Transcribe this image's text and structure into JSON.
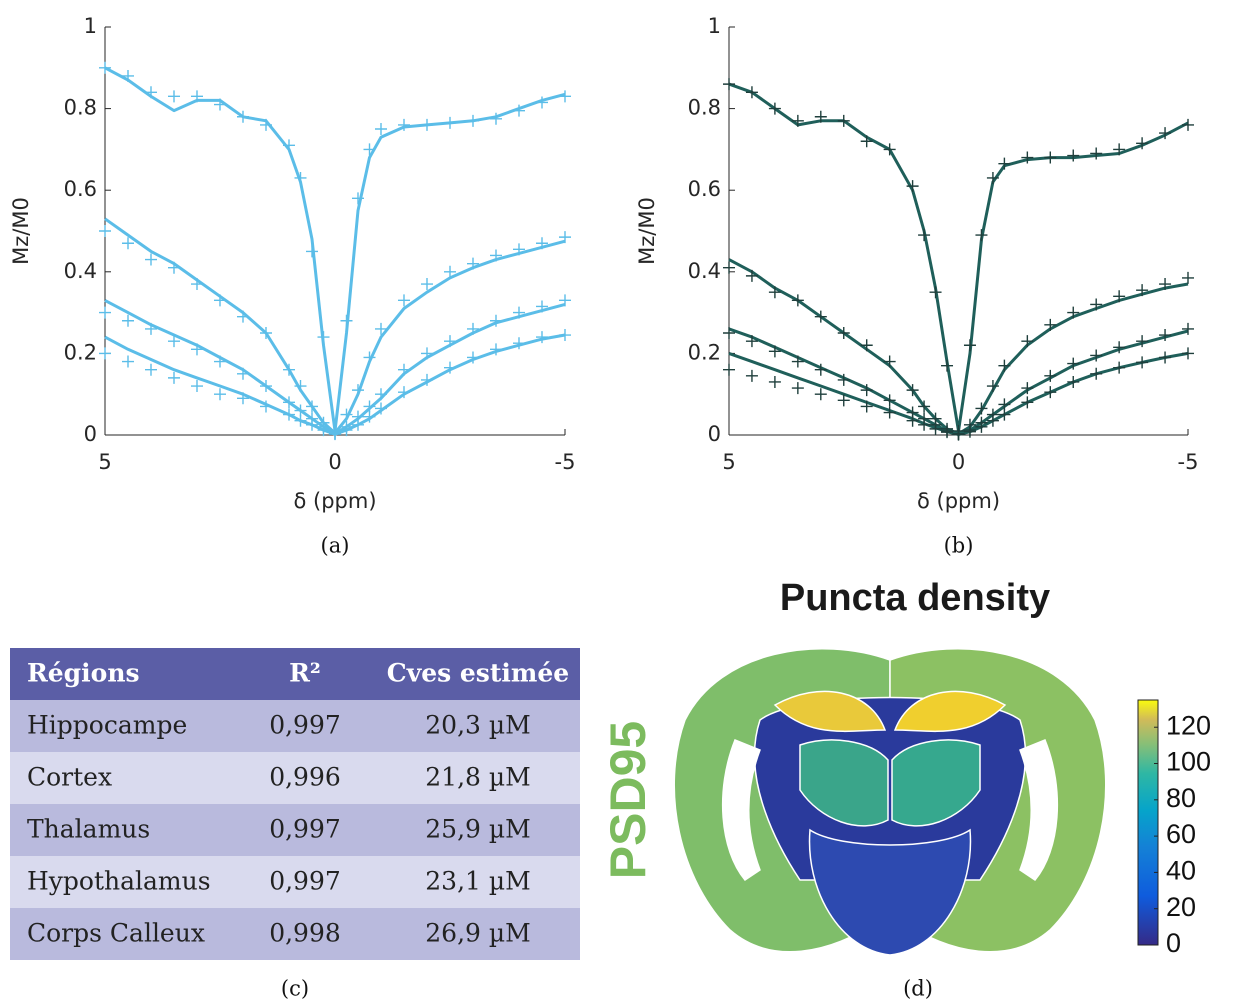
{
  "chart_data": [
    {
      "type": "line",
      "label": "(a)",
      "xlabel": "δ (ppm)",
      "ylabel": "Mz/M0",
      "x": [
        5,
        4.5,
        4,
        3.5,
        3,
        2.5,
        2,
        1.5,
        1,
        0.75,
        0.5,
        0.25,
        0,
        -0.25,
        -0.5,
        -0.75,
        -1,
        -1.5,
        -2,
        -2.5,
        -3,
        -3.5,
        -4,
        -4.5,
        -5
      ],
      "xlim": [
        5,
        -5
      ],
      "xticks": [
        5,
        0,
        -5
      ],
      "ylim": [
        0,
        1
      ],
      "yticks": [
        0,
        0.2,
        0.4,
        0.6,
        0.8,
        1
      ],
      "series": [
        {
          "style": "line",
          "color": "#5bbde8",
          "values": [
            0.9,
            0.87,
            0.83,
            0.795,
            0.82,
            0.82,
            0.78,
            0.77,
            0.7,
            0.62,
            0.48,
            0.22,
            0.01,
            0.25,
            0.55,
            0.68,
            0.73,
            0.755,
            0.76,
            0.765,
            0.77,
            0.78,
            0.8,
            0.82,
            0.835
          ]
        },
        {
          "style": "line",
          "color": "#5bbde8",
          "values": [
            0.53,
            0.49,
            0.45,
            0.42,
            0.38,
            0.34,
            0.3,
            0.25,
            0.16,
            0.11,
            0.07,
            0.03,
            0.005,
            0.04,
            0.1,
            0.18,
            0.24,
            0.31,
            0.35,
            0.385,
            0.41,
            0.43,
            0.445,
            0.46,
            0.475
          ]
        },
        {
          "style": "line",
          "color": "#5bbde8",
          "values": [
            0.33,
            0.3,
            0.27,
            0.245,
            0.22,
            0.19,
            0.16,
            0.12,
            0.08,
            0.06,
            0.04,
            0.02,
            0.003,
            0.02,
            0.04,
            0.065,
            0.09,
            0.15,
            0.19,
            0.22,
            0.25,
            0.275,
            0.29,
            0.305,
            0.32
          ]
        },
        {
          "style": "line",
          "color": "#5bbde8",
          "values": [
            0.24,
            0.21,
            0.185,
            0.16,
            0.14,
            0.12,
            0.1,
            0.075,
            0.05,
            0.035,
            0.025,
            0.012,
            0.002,
            0.012,
            0.025,
            0.04,
            0.06,
            0.1,
            0.13,
            0.16,
            0.185,
            0.205,
            0.22,
            0.235,
            0.245
          ]
        },
        {
          "style": "marker",
          "color": "#5bbde8",
          "values": [
            0.9,
            0.88,
            0.84,
            0.83,
            0.83,
            0.81,
            0.78,
            0.76,
            0.71,
            0.63,
            0.45,
            0.24,
            0.01,
            0.28,
            0.58,
            0.7,
            0.75,
            0.76,
            0.76,
            0.765,
            0.77,
            0.775,
            0.795,
            0.815,
            0.83
          ]
        },
        {
          "style": "marker",
          "color": "#5bbde8",
          "values": [
            0.5,
            0.47,
            0.43,
            0.41,
            0.37,
            0.33,
            0.29,
            0.25,
            0.16,
            0.12,
            0.07,
            0.03,
            0.005,
            0.05,
            0.11,
            0.19,
            0.26,
            0.33,
            0.37,
            0.4,
            0.42,
            0.44,
            0.455,
            0.47,
            0.485
          ]
        },
        {
          "style": "marker",
          "color": "#5bbde8",
          "values": [
            0.3,
            0.28,
            0.26,
            0.23,
            0.21,
            0.18,
            0.15,
            0.12,
            0.08,
            0.06,
            0.04,
            0.02,
            0.003,
            0.02,
            0.045,
            0.07,
            0.1,
            0.16,
            0.2,
            0.23,
            0.26,
            0.28,
            0.3,
            0.315,
            0.33
          ]
        },
        {
          "style": "marker",
          "color": "#5bbde8",
          "values": [
            0.2,
            0.18,
            0.16,
            0.14,
            0.12,
            0.1,
            0.09,
            0.07,
            0.05,
            0.035,
            0.025,
            0.012,
            0.002,
            0.012,
            0.025,
            0.045,
            0.065,
            0.105,
            0.135,
            0.165,
            0.19,
            0.21,
            0.225,
            0.24,
            0.245
          ]
        }
      ]
    },
    {
      "type": "line",
      "label": "(b)",
      "xlabel": "δ (ppm)",
      "ylabel": "Mz/M0",
      "x": [
        5,
        4.5,
        4,
        3.5,
        3,
        2.5,
        2,
        1.5,
        1,
        0.75,
        0.5,
        0.25,
        0,
        -0.25,
        -0.5,
        -0.75,
        -1,
        -1.5,
        -2,
        -2.5,
        -3,
        -3.5,
        -4,
        -4.5,
        -5
      ],
      "xlim": [
        5,
        -5
      ],
      "xticks": [
        5,
        0,
        -5
      ],
      "ylim": [
        0,
        1
      ],
      "yticks": [
        0,
        0.2,
        0.4,
        0.6,
        0.8,
        1
      ],
      "series": [
        {
          "style": "line",
          "color": "#1f5f5a",
          "values": [
            0.86,
            0.84,
            0.8,
            0.76,
            0.77,
            0.77,
            0.73,
            0.7,
            0.6,
            0.5,
            0.36,
            0.18,
            0.01,
            0.2,
            0.48,
            0.62,
            0.66,
            0.675,
            0.68,
            0.68,
            0.685,
            0.69,
            0.71,
            0.735,
            0.765
          ]
        },
        {
          "style": "line",
          "color": "#1f5f5a",
          "values": [
            0.43,
            0.4,
            0.36,
            0.33,
            0.29,
            0.25,
            0.21,
            0.17,
            0.11,
            0.07,
            0.04,
            0.015,
            0.003,
            0.02,
            0.06,
            0.11,
            0.16,
            0.22,
            0.26,
            0.29,
            0.31,
            0.33,
            0.345,
            0.36,
            0.37
          ]
        },
        {
          "style": "line",
          "color": "#1f5f5a",
          "values": [
            0.26,
            0.24,
            0.215,
            0.19,
            0.165,
            0.14,
            0.115,
            0.085,
            0.055,
            0.04,
            0.025,
            0.01,
            0.002,
            0.012,
            0.03,
            0.05,
            0.07,
            0.11,
            0.14,
            0.17,
            0.19,
            0.21,
            0.225,
            0.24,
            0.255
          ]
        },
        {
          "style": "line",
          "color": "#1f5f5a",
          "values": [
            0.2,
            0.18,
            0.16,
            0.14,
            0.12,
            0.1,
            0.08,
            0.06,
            0.04,
            0.028,
            0.018,
            0.008,
            0.001,
            0.008,
            0.02,
            0.035,
            0.05,
            0.08,
            0.105,
            0.13,
            0.15,
            0.165,
            0.178,
            0.19,
            0.2
          ]
        },
        {
          "style": "marker",
          "color": "#1f3f3c",
          "values": [
            0.86,
            0.84,
            0.8,
            0.77,
            0.78,
            0.77,
            0.72,
            0.7,
            0.61,
            0.49,
            0.35,
            0.17,
            0.01,
            0.22,
            0.49,
            0.63,
            0.665,
            0.68,
            0.68,
            0.685,
            0.69,
            0.7,
            0.715,
            0.74,
            0.76
          ]
        },
        {
          "style": "marker",
          "color": "#1f3f3c",
          "values": [
            0.41,
            0.39,
            0.35,
            0.33,
            0.29,
            0.25,
            0.22,
            0.18,
            0.11,
            0.07,
            0.04,
            0.015,
            0.003,
            0.025,
            0.065,
            0.12,
            0.17,
            0.23,
            0.27,
            0.3,
            0.32,
            0.34,
            0.355,
            0.37,
            0.385
          ]
        },
        {
          "style": "marker",
          "color": "#1f3f3c",
          "values": [
            0.25,
            0.23,
            0.205,
            0.18,
            0.16,
            0.135,
            0.11,
            0.085,
            0.055,
            0.04,
            0.025,
            0.01,
            0.002,
            0.012,
            0.03,
            0.05,
            0.075,
            0.115,
            0.145,
            0.175,
            0.195,
            0.215,
            0.23,
            0.245,
            0.26
          ]
        },
        {
          "style": "marker",
          "color": "#1f3f3c",
          "values": [
            0.16,
            0.145,
            0.13,
            0.115,
            0.1,
            0.085,
            0.07,
            0.055,
            0.035,
            0.025,
            0.015,
            0.007,
            0.001,
            0.008,
            0.02,
            0.035,
            0.05,
            0.08,
            0.105,
            0.13,
            0.15,
            0.165,
            0.178,
            0.19,
            0.2
          ]
        }
      ]
    }
  ],
  "table": {
    "header": [
      "Régions",
      "R²",
      "Cves estimée"
    ],
    "rows": [
      [
        "Hippocampe",
        "0,997",
        "20,3 µM"
      ],
      [
        "Cortex",
        "0,996",
        "21,8 µM"
      ],
      [
        "Thalamus",
        "0,997",
        "25,9 µM"
      ],
      [
        "Hypothalamus",
        "0,997",
        "23,1 µM"
      ],
      [
        "Corps Calleux",
        "0,998",
        "26,9 µM"
      ]
    ],
    "caption": "(c)"
  },
  "brain_map": {
    "title": "Puncta density",
    "row_label": "PSD95",
    "colorbar": {
      "lim": [
        0,
        135
      ],
      "ticks": [
        0,
        20,
        40,
        60,
        80,
        100,
        120
      ]
    },
    "caption": "(d)"
  }
}
